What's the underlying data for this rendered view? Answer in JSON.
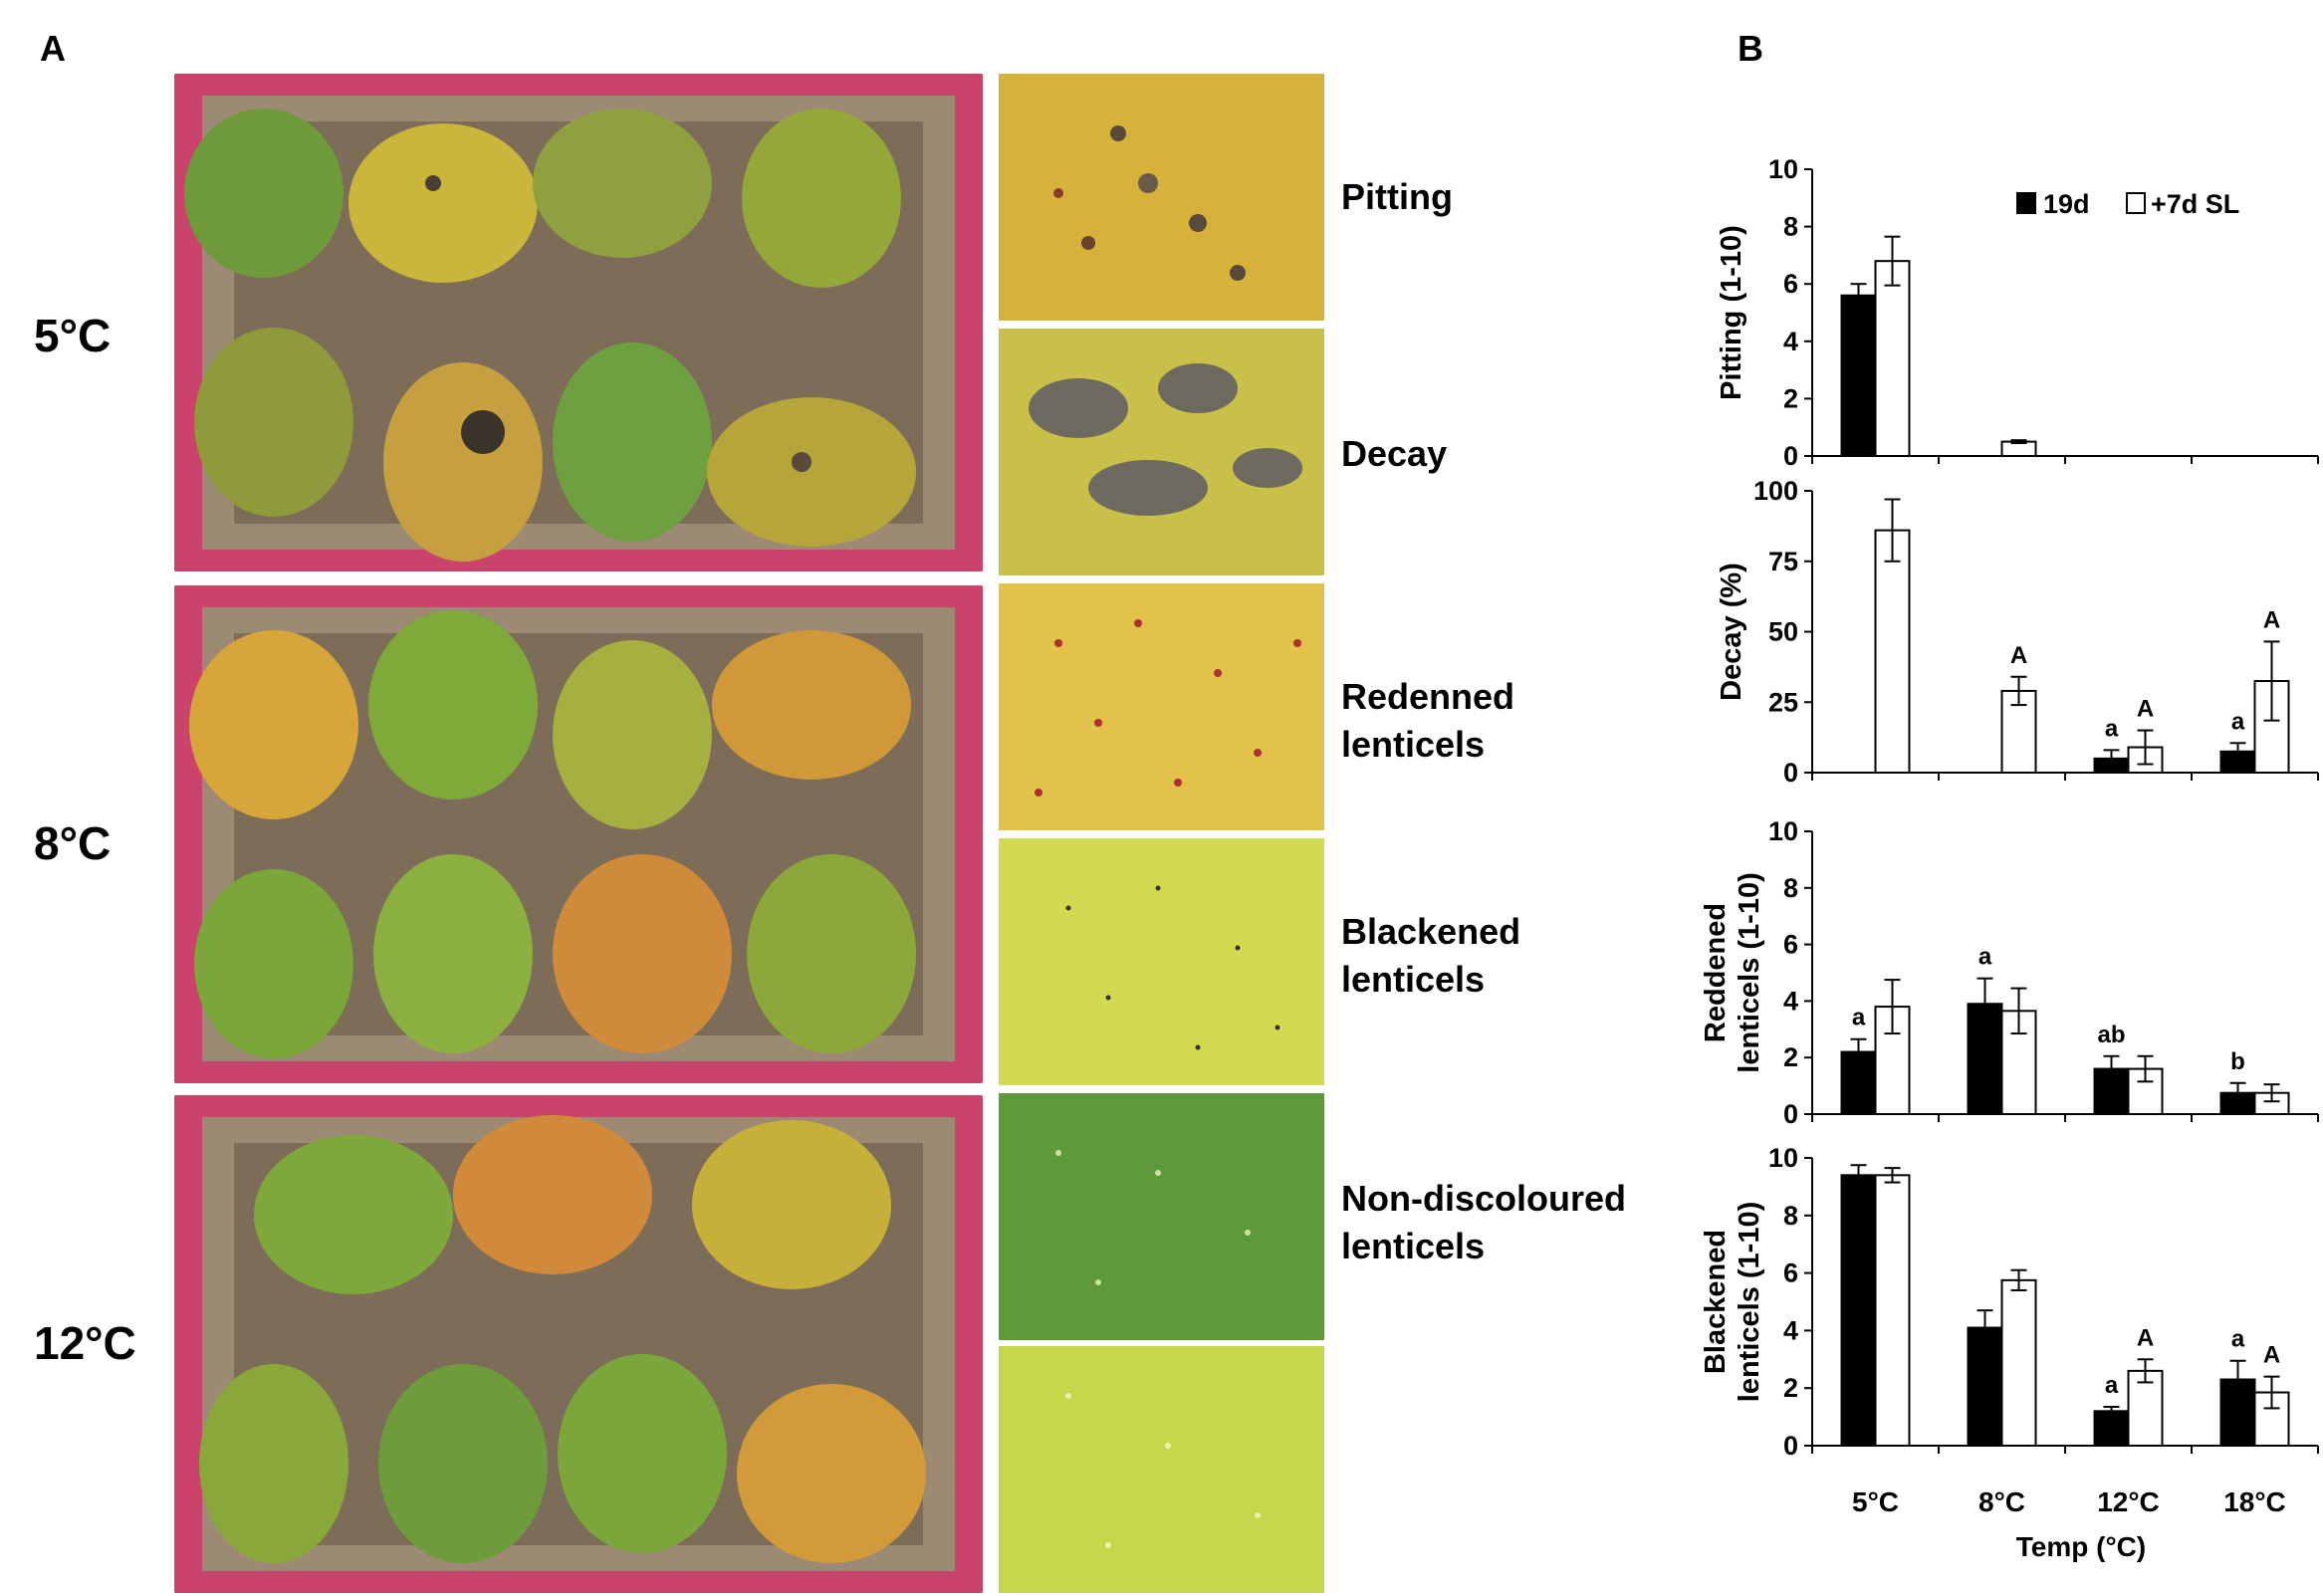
{
  "panels": {
    "a": "A",
    "b": "B"
  },
  "photo_rows": [
    {
      "temp": "5°C"
    },
    {
      "temp": "8°C"
    },
    {
      "temp": "12°C"
    }
  ],
  "defects": {
    "pitting": "Pitting",
    "decay": "Decay",
    "reddened": [
      "Redenned",
      "lenticels"
    ],
    "blackened": [
      "Blackened",
      "lenticels"
    ],
    "nondiscoloured": [
      "Non-discoloured",
      "lenticels"
    ]
  },
  "chart_data": {
    "type": "bar",
    "categories": [
      "5°C",
      "8°C",
      "12°C",
      "18°C"
    ],
    "xlabel": "Temp (°C)",
    "legend": {
      "entries": [
        "19d",
        "+7d SL"
      ],
      "placement": "top-right"
    },
    "series_styles": {
      "19d": "#000000",
      "+7d SL": "#ffffff"
    },
    "subplots": [
      {
        "ylabel": [
          "Pitting (1-10)"
        ],
        "ylim": [
          0,
          10
        ],
        "yticks": [
          0,
          2,
          4,
          6,
          8,
          10
        ],
        "series": [
          {
            "name": "19d",
            "values": [
              5.6,
              0,
              0,
              0
            ],
            "err": [
              0.4,
              0,
              0,
              0
            ],
            "letters": [
              "",
              "",
              "",
              ""
            ]
          },
          {
            "name": "+7d SL",
            "values": [
              6.8,
              0.5,
              0,
              0
            ],
            "err": [
              0.85,
              0.05,
              0,
              0
            ],
            "letters": [
              "",
              "",
              "",
              ""
            ]
          }
        ]
      },
      {
        "ylabel": [
          "Decay (%)"
        ],
        "ylim": [
          0,
          100
        ],
        "yticks": [
          0,
          25,
          50,
          75,
          100
        ],
        "series": [
          {
            "name": "19d",
            "values": [
              0,
              0,
              5,
              7.5
            ],
            "err": [
              0,
              0,
              3,
              3
            ],
            "letters": [
              "",
              "",
              "a",
              "a"
            ]
          },
          {
            "name": "+7d SL",
            "values": [
              86,
              29,
              9,
              32.5
            ],
            "err": [
              11,
              5,
              6,
              14
            ],
            "letters": [
              "",
              "A",
              "A",
              "A"
            ]
          }
        ]
      },
      {
        "ylabel": [
          "Reddened",
          "lenticels (1-10)"
        ],
        "ylim": [
          0,
          10
        ],
        "yticks": [
          0,
          2,
          4,
          6,
          8,
          10
        ],
        "series": [
          {
            "name": "19d",
            "values": [
              2.2,
              3.9,
              1.6,
              0.75
            ],
            "err": [
              0.45,
              0.9,
              0.45,
              0.35
            ],
            "letters": [
              "a",
              "a",
              "ab",
              "b"
            ]
          },
          {
            "name": "+7d SL",
            "values": [
              3.8,
              3.65,
              1.6,
              0.75
            ],
            "err": [
              0.95,
              0.8,
              0.45,
              0.3
            ],
            "letters": [
              "",
              "",
              "",
              ""
            ]
          }
        ]
      },
      {
        "ylabel": [
          "Blackened",
          "lenticels (1-10)"
        ],
        "ylim": [
          0,
          10
        ],
        "yticks": [
          0,
          2,
          4,
          6,
          8,
          10
        ],
        "series": [
          {
            "name": "19d",
            "values": [
              9.4,
              4.1,
              1.2,
              2.3
            ],
            "err": [
              0.35,
              0.6,
              0.15,
              0.65
            ],
            "letters": [
              "",
              "",
              "a",
              "a"
            ]
          },
          {
            "name": "+7d SL",
            "values": [
              9.4,
              5.75,
              2.6,
              1.85
            ],
            "err": [
              0.25,
              0.35,
              0.4,
              0.55
            ],
            "letters": [
              "",
              "",
              "A",
              "A"
            ]
          }
        ]
      }
    ]
  }
}
